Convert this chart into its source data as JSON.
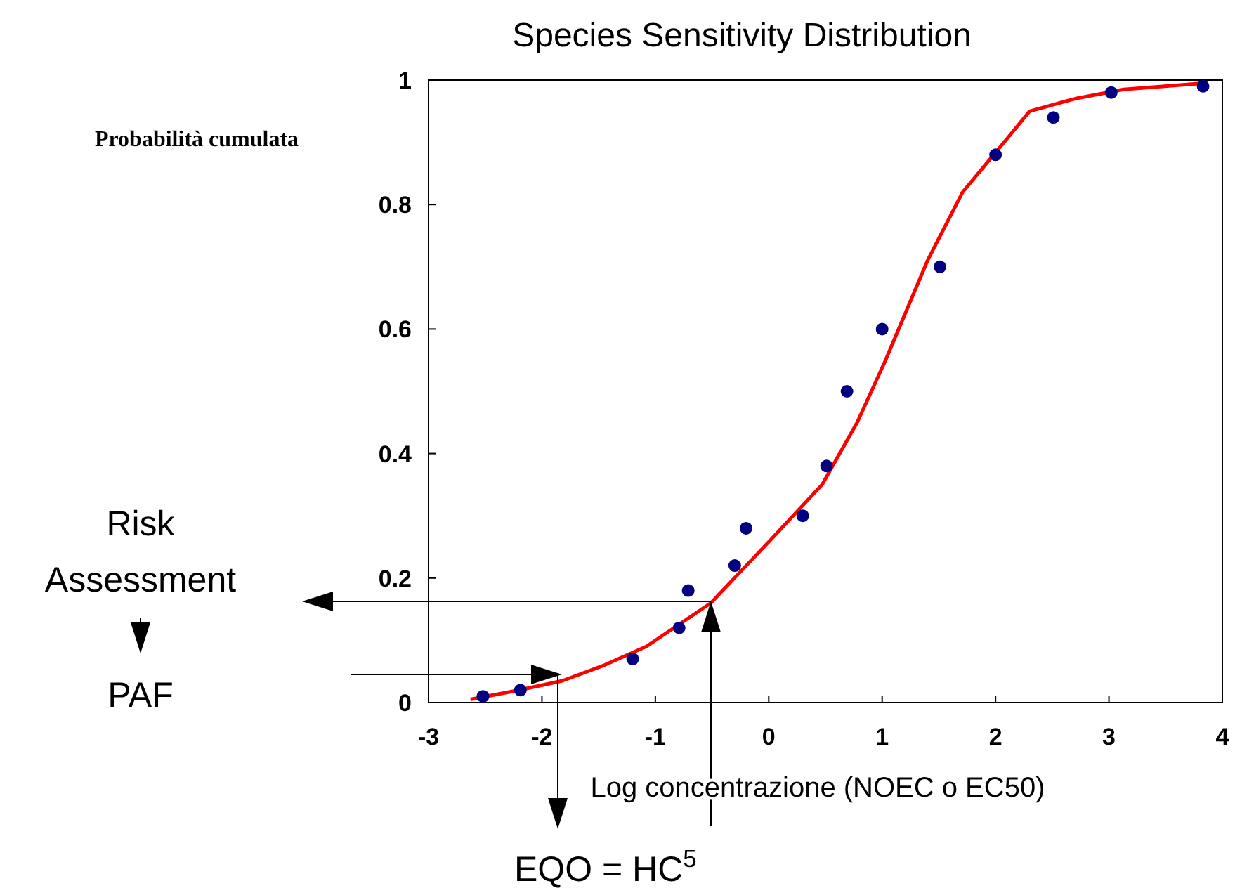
{
  "chart_data": {
    "type": "scatter",
    "title": "Species Sensitivity Distribution",
    "xlabel": "Log concentrazione (NOEC o EC50)",
    "ylabel": "Probabilità cumulata",
    "xlim": [
      -3,
      4
    ],
    "xticks": [
      -3,
      -2,
      -1,
      0,
      1,
      2,
      3,
      4
    ],
    "ylim": [
      0,
      1
    ],
    "yticks": [
      0,
      0.2,
      0.4,
      0.6,
      0.8,
      1
    ],
    "grid": false,
    "annotations": [
      "Risk Assessment",
      "PAF",
      "EQO = HC$^{5}$"
    ],
    "series": [
      {
        "color": "#000080",
        "marker": "circle",
        "x": [
          -2.52,
          -2.19,
          -1.2,
          -0.79,
          -0.71,
          -0.3,
          -0.2,
          0.3,
          0.51,
          0.69,
          1.0,
          1.51,
          2.0,
          2.51,
          3.02,
          3.83
        ],
        "values": [
          0.01,
          0.02,
          0.07,
          0.12,
          0.18,
          0.22,
          0.28,
          0.3,
          0.38,
          0.5,
          0.6,
          0.7,
          0.88,
          0.94,
          0.98,
          0.99
        ]
      },
      {
        "type": "line",
        "color": "#ff0000",
        "line_style": "solid",
        "x": [
          -2.63,
          -2.2,
          -1.82,
          -1.45,
          -1.08,
          -0.51,
          0.01,
          0.47,
          0.78,
          1.03,
          1.4,
          1.71,
          2.12,
          2.3,
          2.7,
          3.13,
          3.83
        ],
        "values": [
          0.005,
          0.02,
          0.035,
          0.06,
          0.09,
          0.16,
          0.26,
          0.35,
          0.45,
          0.55,
          0.71,
          0.82,
          0.91,
          0.95,
          0.97,
          0.985,
          0.995
        ]
      }
    ]
  }
}
